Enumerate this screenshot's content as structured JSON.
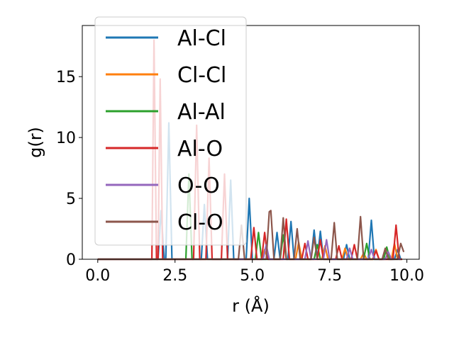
{
  "chart_data": {
    "type": "line",
    "title": "",
    "xlabel": "r (Å)",
    "ylabel": "g(r)",
    "xlim": [
      -0.5,
      10.4
    ],
    "ylim": [
      0,
      19.2
    ],
    "xticks": [
      0.0,
      2.5,
      5.0,
      7.5,
      10.0
    ],
    "xtick_labels": [
      "0.0",
      "2.5",
      "5.0",
      "7.5",
      "10.0"
    ],
    "yticks": [
      0,
      5,
      10,
      15
    ],
    "ytick_labels": [
      "0",
      "5",
      "10",
      "15"
    ],
    "grid": false,
    "legend_position": "upper-left",
    "series": [
      {
        "name": "Al-Cl",
        "color": "#1f77b4",
        "points": [
          [
            0,
            0
          ],
          [
            1.95,
            0
          ],
          [
            2.05,
            4
          ],
          [
            2.15,
            0
          ],
          [
            2.2,
            0
          ],
          [
            2.3,
            11.2
          ],
          [
            2.4,
            0
          ],
          [
            3.35,
            0
          ],
          [
            3.45,
            4.5
          ],
          [
            3.55,
            0
          ],
          [
            4.2,
            0
          ],
          [
            4.3,
            6.5
          ],
          [
            4.4,
            0
          ],
          [
            4.8,
            0
          ],
          [
            4.9,
            5.0
          ],
          [
            5.0,
            0
          ],
          [
            5.7,
            0
          ],
          [
            5.8,
            2.2
          ],
          [
            5.9,
            0
          ],
          [
            6.15,
            0
          ],
          [
            6.25,
            3.1
          ],
          [
            6.35,
            0
          ],
          [
            6.9,
            0
          ],
          [
            7.0,
            2.4
          ],
          [
            7.1,
            0
          ],
          [
            7.2,
            2.3
          ],
          [
            7.3,
            0
          ],
          [
            7.95,
            0
          ],
          [
            8.05,
            1.2
          ],
          [
            8.15,
            0
          ],
          [
            8.75,
            0
          ],
          [
            8.85,
            3.2
          ],
          [
            8.95,
            0
          ],
          [
            9.6,
            0
          ],
          [
            9.7,
            0.8
          ],
          [
            9.8,
            0
          ]
        ]
      },
      {
        "name": "Cl-Cl",
        "color": "#ff7f0e",
        "points": [
          [
            0,
            0
          ],
          [
            5.3,
            0
          ],
          [
            5.4,
            0.8
          ],
          [
            5.5,
            0
          ],
          [
            6.4,
            0
          ],
          [
            6.5,
            1.4
          ],
          [
            6.6,
            0
          ],
          [
            7.25,
            0
          ],
          [
            7.35,
            1.1
          ],
          [
            7.45,
            0
          ],
          [
            7.9,
            0
          ],
          [
            8.0,
            0.9
          ],
          [
            8.1,
            0
          ],
          [
            8.5,
            0
          ],
          [
            8.6,
            0.5
          ],
          [
            8.7,
            0
          ],
          [
            8.9,
            0
          ],
          [
            9.0,
            0.8
          ],
          [
            9.1,
            0
          ],
          [
            9.5,
            0
          ],
          [
            9.6,
            1.3
          ],
          [
            9.7,
            0
          ],
          [
            9.8,
            0
          ]
        ]
      },
      {
        "name": "Al-Al",
        "color": "#2ca02c",
        "points": [
          [
            0,
            0
          ],
          [
            2.85,
            0
          ],
          [
            2.95,
            7.0
          ],
          [
            3.05,
            0
          ],
          [
            5.1,
            0
          ],
          [
            5.2,
            2.2
          ],
          [
            5.3,
            0
          ],
          [
            5.9,
            0
          ],
          [
            6.0,
            2.0
          ],
          [
            6.1,
            0
          ],
          [
            7.0,
            0
          ],
          [
            7.1,
            1.2
          ],
          [
            7.2,
            0
          ],
          [
            8.6,
            0
          ],
          [
            8.7,
            1.3
          ],
          [
            8.8,
            0
          ],
          [
            9.25,
            0
          ],
          [
            9.35,
            1.0
          ],
          [
            9.45,
            0
          ],
          [
            9.85,
            0
          ]
        ]
      },
      {
        "name": "Al-O",
        "color": "#d62728",
        "points": [
          [
            0,
            0
          ],
          [
            1.75,
            0
          ],
          [
            1.82,
            18.0
          ],
          [
            1.9,
            0
          ],
          [
            1.95,
            0
          ],
          [
            2.02,
            14.8
          ],
          [
            2.1,
            0
          ],
          [
            3.1,
            0
          ],
          [
            3.2,
            11.0
          ],
          [
            3.3,
            0
          ],
          [
            3.5,
            0
          ],
          [
            3.6,
            8.3
          ],
          [
            3.7,
            0
          ],
          [
            4.0,
            0
          ],
          [
            4.1,
            7.0
          ],
          [
            4.2,
            0
          ],
          [
            4.95,
            0
          ],
          [
            5.05,
            2.6
          ],
          [
            5.15,
            0
          ],
          [
            5.3,
            0
          ],
          [
            5.4,
            2.2
          ],
          [
            5.5,
            0
          ],
          [
            6.0,
            0
          ],
          [
            6.1,
            3.3
          ],
          [
            6.2,
            0
          ],
          [
            6.6,
            0
          ],
          [
            6.7,
            1.3
          ],
          [
            6.8,
            0
          ],
          [
            7.1,
            0
          ],
          [
            7.2,
            1.6
          ],
          [
            7.3,
            0
          ],
          [
            7.7,
            0
          ],
          [
            7.8,
            1.1
          ],
          [
            7.9,
            0
          ],
          [
            8.2,
            0
          ],
          [
            8.3,
            1.2
          ],
          [
            8.4,
            0
          ],
          [
            8.9,
            0
          ],
          [
            9.0,
            0.7
          ],
          [
            9.1,
            0
          ],
          [
            9.55,
            0
          ],
          [
            9.65,
            2.8
          ],
          [
            9.75,
            0
          ],
          [
            9.85,
            0
          ]
        ]
      },
      {
        "name": "O-O",
        "color": "#9467bd",
        "points": [
          [
            0,
            0
          ],
          [
            5.35,
            0
          ],
          [
            5.45,
            1.2
          ],
          [
            5.55,
            0
          ],
          [
            6.7,
            0
          ],
          [
            6.8,
            1.5
          ],
          [
            6.9,
            0
          ],
          [
            7.3,
            0
          ],
          [
            7.4,
            1.6
          ],
          [
            7.5,
            0
          ],
          [
            8.05,
            0
          ],
          [
            8.15,
            0.9
          ],
          [
            8.25,
            0
          ],
          [
            8.75,
            0
          ],
          [
            8.85,
            0.8
          ],
          [
            8.95,
            0
          ],
          [
            9.3,
            0
          ],
          [
            9.4,
            0.6
          ],
          [
            9.5,
            0
          ],
          [
            9.8,
            0
          ]
        ]
      },
      {
        "name": "Cl-O",
        "color": "#8c564b",
        "points": [
          [
            0,
            0
          ],
          [
            4.55,
            0
          ],
          [
            4.65,
            2.8
          ],
          [
            4.75,
            0
          ],
          [
            5.45,
            0
          ],
          [
            5.55,
            3.9
          ],
          [
            5.6,
            4.0
          ],
          [
            5.7,
            0
          ],
          [
            5.9,
            0
          ],
          [
            6.0,
            3.4
          ],
          [
            6.1,
            0
          ],
          [
            6.35,
            0
          ],
          [
            6.45,
            2.5
          ],
          [
            6.55,
            0
          ],
          [
            6.9,
            0
          ],
          [
            7.0,
            1.8
          ],
          [
            7.1,
            0
          ],
          [
            7.55,
            0
          ],
          [
            7.65,
            3.0
          ],
          [
            7.75,
            0
          ],
          [
            8.4,
            0
          ],
          [
            8.5,
            3.5
          ],
          [
            8.6,
            0
          ],
          [
            9.2,
            0
          ],
          [
            9.3,
            0.9
          ],
          [
            9.4,
            0
          ],
          [
            9.7,
            0
          ],
          [
            9.8,
            1.3
          ],
          [
            9.9,
            0.6
          ]
        ]
      }
    ]
  }
}
